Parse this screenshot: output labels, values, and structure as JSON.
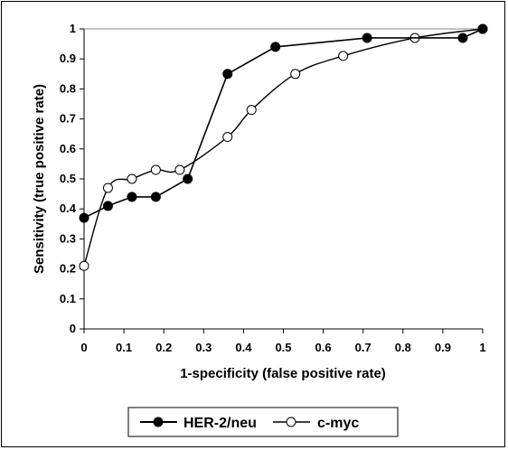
{
  "chart_data": {
    "type": "line",
    "title": "",
    "xlabel": "1-specificity (false positive rate)",
    "ylabel": "Sensitivity (true positive rate)",
    "xlim": [
      0,
      1
    ],
    "ylim": [
      0,
      1
    ],
    "x_ticks": [
      "0",
      "0.1",
      "0.2",
      "0.3",
      "0.4",
      "0.5",
      "0.6",
      "0.7",
      "0.8",
      "0.9",
      "1"
    ],
    "y_ticks": [
      "0",
      "0.1",
      "0.2",
      "0.3",
      "0.4",
      "0.5",
      "0.6",
      "0.7",
      "0.8",
      "0.9",
      "1"
    ],
    "grid": false,
    "legend_position": "bottom",
    "series": [
      {
        "name": "HER-2/neu",
        "marker": "filled-circle",
        "color": "#000000",
        "smooth": false,
        "points": [
          [
            0,
            0.37
          ],
          [
            0.06,
            0.41
          ],
          [
            0.12,
            0.44
          ],
          [
            0.18,
            0.44
          ],
          [
            0.26,
            0.5
          ],
          [
            0.36,
            0.85
          ],
          [
            0.48,
            0.94
          ],
          [
            0.71,
            0.97
          ],
          [
            0.95,
            0.97
          ],
          [
            1.0,
            1.0
          ]
        ]
      },
      {
        "name": "c-myc",
        "marker": "open-circle",
        "color": "#000000",
        "smooth": true,
        "points": [
          [
            0,
            0.21
          ],
          [
            0.06,
            0.47
          ],
          [
            0.12,
            0.5
          ],
          [
            0.18,
            0.53
          ],
          [
            0.24,
            0.53
          ],
          [
            0.36,
            0.64
          ],
          [
            0.42,
            0.73
          ],
          [
            0.53,
            0.85
          ],
          [
            0.65,
            0.91
          ],
          [
            0.83,
            0.97
          ],
          [
            1.0,
            1.0
          ]
        ]
      }
    ],
    "reference_line": {
      "from": [
        0,
        1
      ],
      "to": [
        1,
        1
      ]
    }
  }
}
